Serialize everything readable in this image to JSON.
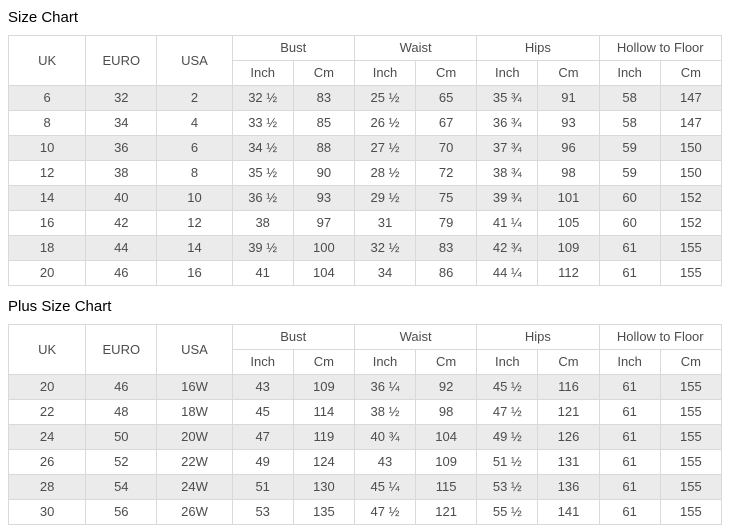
{
  "colors": {
    "row_stripe": "#ebebeb",
    "border": "#d9d9d9",
    "cell_text": "#4d4d4d",
    "title_text": "#000000"
  },
  "chart_data": [
    {
      "type": "table",
      "title": "Size Chart",
      "column_groups": [
        {
          "label": "UK",
          "span": 1
        },
        {
          "label": "EURO",
          "span": 1
        },
        {
          "label": "USA",
          "span": 1
        },
        {
          "label": "Bust",
          "span": 2
        },
        {
          "label": "Waist",
          "span": 2
        },
        {
          "label": "Hips",
          "span": 2
        },
        {
          "label": "Hollow to Floor",
          "span": 2
        }
      ],
      "unit_row": [
        "Inch",
        "Cm",
        "Inch",
        "Cm",
        "Inch",
        "Cm",
        "Inch",
        "Cm"
      ],
      "rows": [
        [
          "6",
          "32",
          "2",
          "32 ½",
          "83",
          "25 ½",
          "65",
          "35 ¾",
          "91",
          "58",
          "147"
        ],
        [
          "8",
          "34",
          "4",
          "33 ½",
          "85",
          "26 ½",
          "67",
          "36 ¾",
          "93",
          "58",
          "147"
        ],
        [
          "10",
          "36",
          "6",
          "34 ½",
          "88",
          "27 ½",
          "70",
          "37 ¾",
          "96",
          "59",
          "150"
        ],
        [
          "12",
          "38",
          "8",
          "35 ½",
          "90",
          "28 ½",
          "72",
          "38 ¾",
          "98",
          "59",
          "150"
        ],
        [
          "14",
          "40",
          "10",
          "36 ½",
          "93",
          "29 ½",
          "75",
          "39 ¾",
          "101",
          "60",
          "152"
        ],
        [
          "16",
          "42",
          "12",
          "38",
          "97",
          "31",
          "79",
          "41 ¼",
          "105",
          "60",
          "152"
        ],
        [
          "18",
          "44",
          "14",
          "39 ½",
          "100",
          "32 ½",
          "83",
          "42 ¾",
          "109",
          "61",
          "155"
        ],
        [
          "20",
          "46",
          "16",
          "41",
          "104",
          "34",
          "86",
          "44 ¼",
          "112",
          "61",
          "155"
        ]
      ]
    },
    {
      "type": "table",
      "title": "Plus Size Chart",
      "column_groups": [
        {
          "label": "UK",
          "span": 1
        },
        {
          "label": "EURO",
          "span": 1
        },
        {
          "label": "USA",
          "span": 1
        },
        {
          "label": "Bust",
          "span": 2
        },
        {
          "label": "Waist",
          "span": 2
        },
        {
          "label": "Hips",
          "span": 2
        },
        {
          "label": "Hollow to Floor",
          "span": 2
        }
      ],
      "unit_row": [
        "Inch",
        "Cm",
        "Inch",
        "Cm",
        "Inch",
        "Cm",
        "Inch",
        "Cm"
      ],
      "rows": [
        [
          "20",
          "46",
          "16W",
          "43",
          "109",
          "36 ¼",
          "92",
          "45 ½",
          "116",
          "61",
          "155"
        ],
        [
          "22",
          "48",
          "18W",
          "45",
          "114",
          "38 ½",
          "98",
          "47 ½",
          "121",
          "61",
          "155"
        ],
        [
          "24",
          "50",
          "20W",
          "47",
          "119",
          "40 ¾",
          "104",
          "49 ½",
          "126",
          "61",
          "155"
        ],
        [
          "26",
          "52",
          "22W",
          "49",
          "124",
          "43",
          "109",
          "51 ½",
          "131",
          "61",
          "155"
        ],
        [
          "28",
          "54",
          "24W",
          "51",
          "130",
          "45 ¼",
          "115",
          "53 ½",
          "136",
          "61",
          "155"
        ],
        [
          "30",
          "56",
          "26W",
          "53",
          "135",
          "47 ½",
          "121",
          "55 ½",
          "141",
          "61",
          "155"
        ]
      ]
    }
  ]
}
